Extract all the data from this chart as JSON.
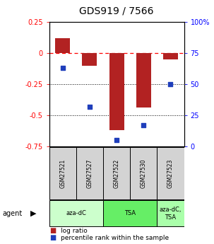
{
  "title": "GDS919 / 7566",
  "samples": [
    "GSM27521",
    "GSM27527",
    "GSM27522",
    "GSM27530",
    "GSM27523"
  ],
  "log_ratio": [
    0.12,
    -0.1,
    -0.62,
    -0.44,
    -0.05
  ],
  "percentile": [
    0.63,
    0.32,
    0.05,
    0.17,
    0.5
  ],
  "ylim_left": [
    -0.75,
    0.25
  ],
  "ylim_right": [
    0.0,
    1.0
  ],
  "yticks_left": [
    -0.75,
    -0.5,
    -0.25,
    0.0,
    0.25
  ],
  "ytick_labels_left": [
    "-0.75",
    "-0.5",
    "-0.25",
    "0",
    "0.25"
  ],
  "yticks_right": [
    0.0,
    0.25,
    0.5,
    0.75,
    1.0
  ],
  "ytick_labels_right": [
    "0",
    "25",
    "50",
    "75",
    "100%"
  ],
  "hlines_dotted": [
    -0.25,
    -0.5
  ],
  "hline_dashed": 0.0,
  "bar_color": "#B22222",
  "square_color": "#1F3EBB",
  "groups": [
    {
      "label": "aza-dC",
      "indices": [
        0,
        1
      ],
      "color": "#CCFFCC"
    },
    {
      "label": "TSA",
      "indices": [
        2,
        3
      ],
      "color": "#66EE66"
    },
    {
      "label": "aza-dC,\nTSA",
      "indices": [
        4
      ],
      "color": "#AAFFAA"
    }
  ],
  "agent_label": "agent",
  "legend_items": [
    {
      "label": "log ratio",
      "color": "#B22222"
    },
    {
      "label": "percentile rank within the sample",
      "color": "#1F3EBB"
    }
  ],
  "bar_width": 0.55,
  "square_size": 18,
  "title_fontsize": 10,
  "tick_fontsize": 7,
  "label_fontsize": 7,
  "cell_color": "#D3D3D3",
  "fig_width": 3.03,
  "fig_height": 3.45,
  "fig_dpi": 100
}
